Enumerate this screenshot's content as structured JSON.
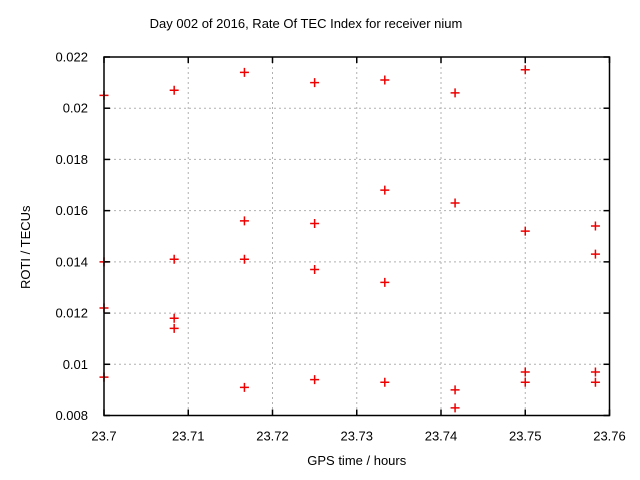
{
  "figure": {
    "background": "#ffffff",
    "border_color": "#000000",
    "grid_color": "#b0b0b0"
  },
  "chart_data": {
    "type": "scatter",
    "title": "Day 002 of 2016, Rate Of TEC Index for receiver nium",
    "xlabel": "GPS time / hours",
    "ylabel": "ROTI / TECUs",
    "xlim": [
      23.7,
      23.76
    ],
    "ylim": [
      0.008,
      0.022
    ],
    "x_ticks": [
      23.7,
      23.71,
      23.72,
      23.73,
      23.74,
      23.75,
      23.76
    ],
    "x_tick_labels": [
      "23.7",
      "23.71",
      "23.72",
      "23.73",
      "23.74",
      "23.75",
      "23.76"
    ],
    "y_ticks": [
      0.008,
      0.01,
      0.012,
      0.014,
      0.016,
      0.018,
      0.02,
      0.022
    ],
    "y_tick_labels": [
      "0.008",
      "0.01",
      "0.012",
      "0.014",
      "0.016",
      "0.018",
      "0.02",
      "0.022"
    ],
    "grid": true,
    "legend": "none",
    "marker": "plus",
    "marker_color": "#ee0000",
    "points": [
      {
        "x": 23.7,
        "y": 0.0205
      },
      {
        "x": 23.7,
        "y": 0.014
      },
      {
        "x": 23.7,
        "y": 0.0122
      },
      {
        "x": 23.7,
        "y": 0.0095
      },
      {
        "x": 23.70833,
        "y": 0.0207
      },
      {
        "x": 23.70833,
        "y": 0.0141
      },
      {
        "x": 23.70833,
        "y": 0.0118
      },
      {
        "x": 23.70833,
        "y": 0.0114
      },
      {
        "x": 23.71667,
        "y": 0.0214
      },
      {
        "x": 23.71667,
        "y": 0.0156
      },
      {
        "x": 23.71667,
        "y": 0.0141
      },
      {
        "x": 23.71667,
        "y": 0.0091
      },
      {
        "x": 23.725,
        "y": 0.021
      },
      {
        "x": 23.725,
        "y": 0.0155
      },
      {
        "x": 23.725,
        "y": 0.0137
      },
      {
        "x": 23.725,
        "y": 0.0094
      },
      {
        "x": 23.73333,
        "y": 0.0211
      },
      {
        "x": 23.73333,
        "y": 0.0168
      },
      {
        "x": 23.73333,
        "y": 0.0132
      },
      {
        "x": 23.73333,
        "y": 0.0093
      },
      {
        "x": 23.74167,
        "y": 0.0206
      },
      {
        "x": 23.74167,
        "y": 0.0163
      },
      {
        "x": 23.74167,
        "y": 0.009
      },
      {
        "x": 23.74167,
        "y": 0.0083
      },
      {
        "x": 23.75,
        "y": 0.0215
      },
      {
        "x": 23.75,
        "y": 0.0152
      },
      {
        "x": 23.75,
        "y": 0.0097
      },
      {
        "x": 23.75,
        "y": 0.0093
      },
      {
        "x": 23.75833,
        "y": 0.0154
      },
      {
        "x": 23.75833,
        "y": 0.0143
      },
      {
        "x": 23.75833,
        "y": 0.0097
      },
      {
        "x": 23.75833,
        "y": 0.0093
      }
    ]
  }
}
